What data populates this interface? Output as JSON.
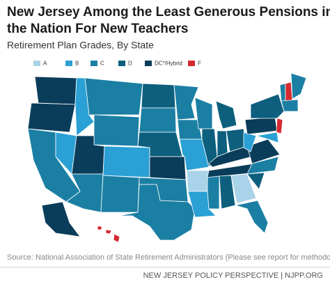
{
  "title_lines": [
    "New Jersey Among the Least Generous Pensions in",
    "the Nation For New Teachers"
  ],
  "subtitle": "Retirement Plan Grades, By State",
  "legend": [
    {
      "label": "A",
      "color": "#a9d3e8"
    },
    {
      "label": "B",
      "color": "#2aa0d4"
    },
    {
      "label": "C",
      "color": "#1b7fa4"
    },
    {
      "label": "D",
      "color": "#0e5f7e"
    },
    {
      "label": "DC*/Hybrid",
      "color": "#0a3d5a"
    },
    {
      "label": "F",
      "color": "#d42a30"
    }
  ],
  "source": "Source: National Association of State Retirement Administrators (Please see report for methodology).",
  "footer": "NEW JERSEY POLICY PERSPECTIVE | NJPP.ORG"
}
